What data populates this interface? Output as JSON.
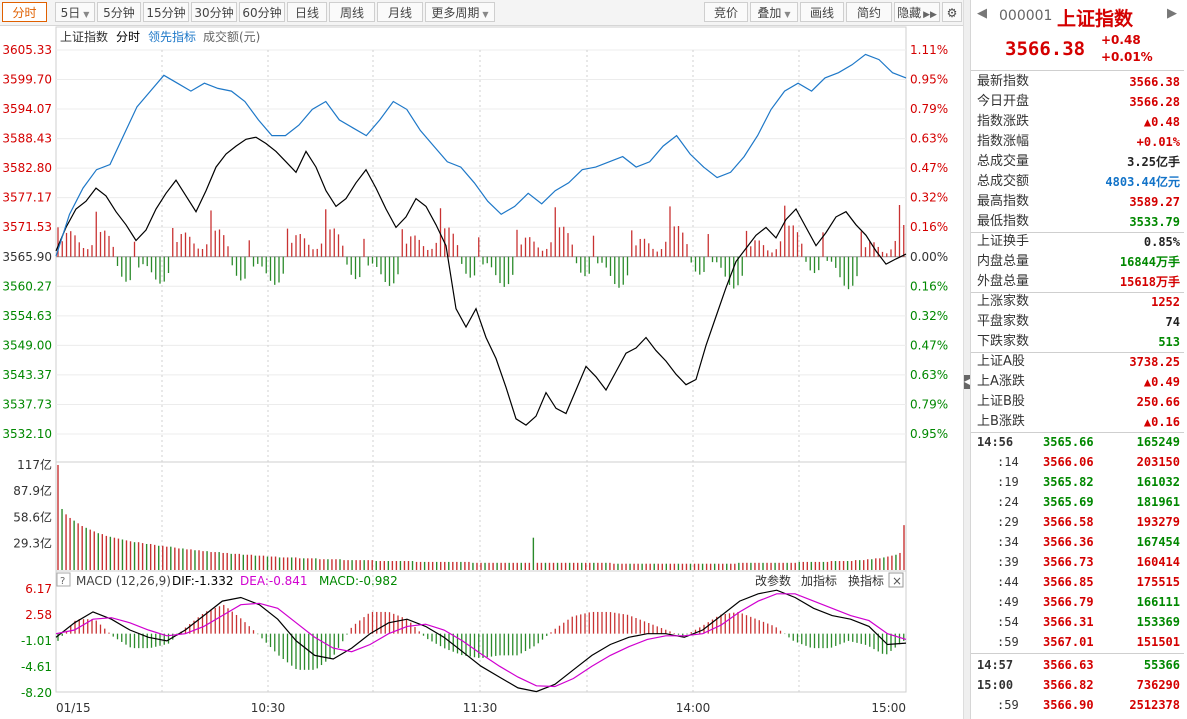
{
  "toolbar": {
    "tabs": [
      "分时",
      "5日",
      "5分钟",
      "15分钟",
      "30分钟",
      "60分钟",
      "日线",
      "周线",
      "月线",
      "更多周期"
    ],
    "right_tools": [
      "竞价",
      "叠加",
      "画线",
      "简约",
      "隐藏"
    ]
  },
  "legend": {
    "index": "上证指数",
    "mode": "分时",
    "lead": "领先指标",
    "volume": "成交额(元)"
  },
  "macd_header": {
    "q": "?",
    "name": "MACD (12,26,9)",
    "dif": "DIF:-1.332",
    "dea": "DEA:-0.841",
    "macd": "MACD:-0.982",
    "adjust": "改参数",
    "add": "加指标",
    "swap": "换指标",
    "close": "×"
  },
  "side": {
    "code": "000001",
    "name": "上证指数",
    "price": "3566.38",
    "chg": "+0.48",
    "pct": "+0.01%",
    "rows1": [
      {
        "label": "最新指数",
        "value": "3566.38",
        "color": "red"
      },
      {
        "label": "今日开盘",
        "value": "3566.28",
        "color": "red"
      },
      {
        "label": "指数涨跌",
        "value": "▲0.48",
        "color": "red"
      },
      {
        "label": "指数涨幅",
        "value": "+0.01%",
        "color": "red"
      },
      {
        "label": "总成交量",
        "value": "3.25亿手",
        "color": "dark"
      },
      {
        "label": "总成交额",
        "value": "4803.44亿元",
        "color": "blue"
      },
      {
        "label": "最高指数",
        "value": "3589.27",
        "color": "red"
      },
      {
        "label": "最低指数",
        "value": "3533.79",
        "color": "green"
      }
    ],
    "rows2": [
      {
        "label": "上证换手",
        "value": "0.85%",
        "color": "dark"
      },
      {
        "label": "内盘总量",
        "value": "16844万手",
        "color": "green"
      },
      {
        "label": "外盘总量",
        "value": "15618万手",
        "color": "red"
      }
    ],
    "rows3": [
      {
        "label": "上涨家数",
        "value": "1252",
        "color": "red"
      },
      {
        "label": "平盘家数",
        "value": "74",
        "color": "dark"
      },
      {
        "label": "下跌家数",
        "value": "513",
        "color": "green"
      }
    ],
    "rows4": [
      {
        "label": "上证A股",
        "value": "3738.25",
        "color": "red"
      },
      {
        "label": "上A涨跌",
        "value": "▲0.49",
        "color": "red"
      },
      {
        "label": "上证B股",
        "value": "250.66",
        "color": "red"
      },
      {
        "label": "上B涨跌",
        "value": "▲0.16",
        "color": "red"
      }
    ],
    "ticks": [
      {
        "t": "14:56",
        "p": "3565.66",
        "pc": "green",
        "v": "165249",
        "vc": "green"
      },
      {
        "t": ":14",
        "p": "3566.06",
        "pc": "red",
        "v": "203150",
        "vc": "red"
      },
      {
        "t": ":19",
        "p": "3565.82",
        "pc": "green",
        "v": "161032",
        "vc": "green"
      },
      {
        "t": ":24",
        "p": "3565.69",
        "pc": "green",
        "v": "181961",
        "vc": "green"
      },
      {
        "t": ":29",
        "p": "3566.58",
        "pc": "red",
        "v": "193279",
        "vc": "red"
      },
      {
        "t": ":34",
        "p": "3566.36",
        "pc": "red",
        "v": "167454",
        "vc": "green"
      },
      {
        "t": ":39",
        "p": "3566.73",
        "pc": "red",
        "v": "160414",
        "vc": "red"
      },
      {
        "t": ":44",
        "p": "3566.85",
        "pc": "red",
        "v": "175515",
        "vc": "red"
      },
      {
        "t": ":49",
        "p": "3566.79",
        "pc": "red",
        "v": "166111",
        "vc": "green"
      },
      {
        "t": ":54",
        "p": "3566.31",
        "pc": "red",
        "v": "153369",
        "vc": "green"
      },
      {
        "t": ":59",
        "p": "3567.01",
        "pc": "red",
        "v": "151501",
        "vc": "red"
      },
      {
        "t": "14:57",
        "p": "3566.63",
        "pc": "red",
        "v": "55366",
        "vc": "green"
      },
      {
        "t": "15:00",
        "p": "3566.82",
        "pc": "red",
        "v": "736290",
        "vc": "red"
      },
      {
        "t": ":59",
        "p": "3566.90",
        "pc": "red",
        "v": "2512378",
        "vc": "red"
      }
    ]
  },
  "chart_data": [
    {
      "type": "line",
      "title": "上证指数 分时",
      "x_labels": [
        "01/15",
        "10:30",
        "11:30",
        "14:00",
        "15:00"
      ],
      "y_ticks": [
        3605.33,
        3599.7,
        3594.07,
        3588.43,
        3582.8,
        3577.17,
        3571.53,
        3565.9,
        3560.27,
        3554.63,
        3549.0,
        3543.37,
        3537.73,
        3532.1
      ],
      "pct_ticks": [
        "1.11%",
        "0.95%",
        "0.79%",
        "0.63%",
        "0.47%",
        "0.32%",
        "0.16%",
        "0.00%",
        "0.16%",
        "0.32%",
        "0.47%",
        "0.63%",
        "0.79%",
        "0.95%"
      ],
      "ylim": [
        3532.1,
        3605.33
      ],
      "prev_close": 3565.9,
      "series": [
        {
          "name": "上证指数",
          "color": "#000000",
          "values": [
            3567.0,
            3571.5,
            3575.0,
            3576.5,
            3579.0,
            3577.5,
            3574.5,
            3572.0,
            3569.0,
            3571.0,
            3575.0,
            3578.0,
            3580.5,
            3577.5,
            3574.5,
            3578.5,
            3583.0,
            3585.5,
            3587.0,
            3588.3,
            3588.7,
            3587.5,
            3586.0,
            3584.0,
            3582.0,
            3586.0,
            3583.0,
            3578.5,
            3575.5,
            3577.0,
            3580.0,
            3582.5,
            3579.0,
            3575.0,
            3571.5,
            3573.5,
            3577.0,
            3575.5,
            3572.0,
            3568.0,
            3556.0,
            3552.5,
            3556.0,
            3550.5,
            3546.5,
            3541.0,
            3535.0,
            3533.8,
            3535.5,
            3540.0,
            3537.0,
            3536.0,
            3540.5,
            3545.0,
            3543.0,
            3540.5,
            3544.0,
            3547.5,
            3548.5,
            3550.5,
            3548.0,
            3546.0,
            3543.5,
            3541.5,
            3542.5,
            3549.0,
            3554.5,
            3560.0,
            3565.0,
            3567.5,
            3570.0,
            3571.5,
            3569.5,
            3573.0,
            3575.0,
            3571.5,
            3568.0,
            3570.5,
            3573.5,
            3574.5,
            3572.0,
            3570.0,
            3567.0,
            3564.5,
            3565.5,
            3566.4
          ]
        },
        {
          "name": "领先指标",
          "color": "#1e78c8",
          "values": [
            3566.0,
            3574.0,
            3579.0,
            3582.5,
            3583.5,
            3589.0,
            3594.5,
            3597.5,
            3600.5,
            3599.0,
            3597.5,
            3599.0,
            3598.0,
            3597.5,
            3595.5,
            3592.0,
            3589.0,
            3589.0,
            3591.0,
            3594.0,
            3595.5,
            3592.0,
            3590.5,
            3589.0,
            3592.0,
            3595.5,
            3594.0,
            3590.0,
            3587.0,
            3584.0,
            3583.0,
            3580.0,
            3576.5,
            3574.0,
            3575.5,
            3578.0,
            3576.0,
            3578.5,
            3580.0,
            3582.5,
            3583.0,
            3584.0,
            3585.0,
            3583.0,
            3584.0,
            3587.0,
            3589.0,
            3585.5,
            3583.0,
            3581.0,
            3582.0,
            3585.0,
            3589.0,
            3594.0,
            3597.5,
            3599.0,
            3597.5,
            3600.0,
            3601.0,
            3602.5,
            3604.5,
            3603.5,
            3601.0,
            3600.0
          ]
        }
      ]
    },
    {
      "type": "bar",
      "title": "成交额(元)",
      "y_ticks": [
        "117亿",
        "87.9亿",
        "58.6亿",
        "29.3亿"
      ],
      "ylim": [
        0,
        117
      ],
      "unit": "亿",
      "values": [
        117,
        68,
        62,
        58,
        55,
        52,
        49,
        47,
        45,
        43,
        41,
        40,
        38,
        37,
        36,
        35,
        34,
        33,
        32,
        31,
        31,
        30,
        29,
        29,
        28,
        27,
        27,
        26,
        26,
        25,
        24,
        24,
        23,
        23,
        22,
        22,
        21,
        21,
        20,
        20,
        20,
        19,
        19,
        18,
        18,
        18,
        17,
        17,
        17,
        16,
        16,
        16,
        15,
        15,
        15,
        14,
        14,
        14,
        14,
        14,
        13,
        13,
        13,
        13,
        13,
        12,
        12,
        12,
        12,
        12,
        12,
        11,
        11,
        11,
        11,
        11,
        11,
        11,
        11,
        10,
        10,
        10,
        10,
        10,
        10,
        10,
        10,
        10,
        10,
        9,
        9,
        9,
        9,
        9,
        9,
        9,
        9,
        9,
        9,
        9,
        9,
        9,
        9,
        8,
        8,
        8,
        8,
        8,
        8,
        8,
        8,
        8,
        8,
        8,
        8,
        8,
        8,
        8,
        36,
        8,
        8,
        8,
        8,
        8,
        8,
        8,
        8,
        8,
        8,
        8,
        8,
        8,
        8,
        8,
        8,
        8,
        8,
        8,
        7,
        7,
        7,
        7,
        7,
        7,
        7,
        7,
        7,
        7,
        7,
        7,
        7,
        7,
        7,
        7,
        7,
        7,
        7,
        7,
        7,
        7,
        7,
        7,
        7,
        7,
        7,
        7,
        7,
        7,
        7,
        8,
        8,
        8,
        8,
        8,
        8,
        8,
        8,
        8,
        8,
        8,
        8,
        8,
        8,
        8,
        9,
        9,
        9,
        9,
        9,
        9,
        9,
        9,
        10,
        10,
        10,
        10,
        10,
        10,
        11,
        11,
        11,
        12,
        12,
        13,
        13,
        14,
        15,
        16,
        17,
        19,
        50
      ]
    },
    {
      "type": "line",
      "title": "MACD (12,26,9)",
      "y_ticks": [
        6.17,
        2.58,
        -1.01,
        -4.61,
        -8.2
      ],
      "ylim": [
        -8.2,
        6.17
      ],
      "series": [
        {
          "name": "DIF",
          "color": "#000000",
          "values": [
            -0.5,
            1.5,
            3.0,
            2.0,
            0.5,
            -0.5,
            -1.0,
            0.5,
            2.5,
            4.5,
            5.0,
            4.0,
            2.0,
            -1.0,
            -3.0,
            -3.5,
            -2.0,
            0.0,
            1.5,
            2.0,
            1.0,
            -0.5,
            -2.5,
            -4.5,
            -6.0,
            -7.5,
            -8.0,
            -7.0,
            -5.0,
            -3.0,
            -1.5,
            -0.5,
            0.0,
            0.0,
            -0.5,
            0.5,
            2.5,
            4.5,
            5.5,
            6.0,
            5.0,
            3.5,
            2.5,
            2.0,
            1.0,
            -1.5,
            -1.3
          ]
        },
        {
          "name": "DEA",
          "color": "#d000d0",
          "values": [
            0.0,
            0.5,
            2.0,
            2.2,
            1.5,
            0.5,
            -0.3,
            0.0,
            1.0,
            2.5,
            4.0,
            4.2,
            3.5,
            1.5,
            -0.5,
            -2.0,
            -2.5,
            -1.5,
            0.0,
            1.0,
            1.3,
            0.5,
            -1.0,
            -2.8,
            -4.5,
            -6.0,
            -7.2,
            -7.3,
            -6.2,
            -4.5,
            -3.0,
            -1.8,
            -0.8,
            -0.3,
            -0.3,
            0.0,
            1.2,
            3.0,
            4.5,
            5.5,
            5.5,
            4.5,
            3.5,
            2.5,
            1.8,
            0.0,
            -0.8
          ]
        }
      ]
    }
  ]
}
